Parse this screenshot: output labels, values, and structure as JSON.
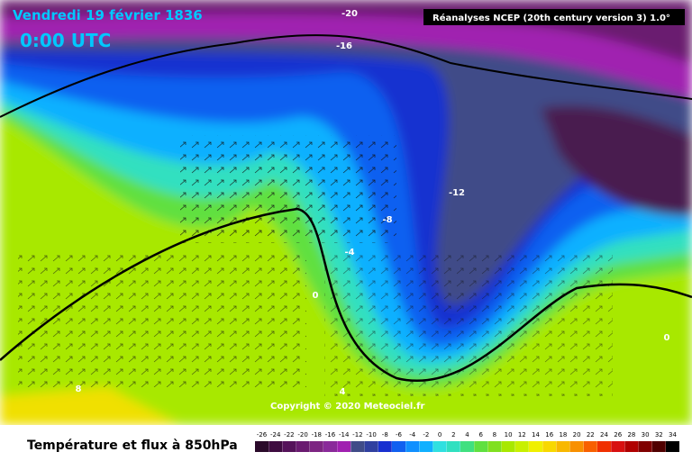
{
  "header": {
    "date": "Vendredi 19 février 1836",
    "time": "0:00 UTC",
    "source": "Réanalyses NCEP (20th century version 3) 1.0°"
  },
  "contour_labels": [
    "-20",
    "-16",
    "-12",
    "-8",
    "-4",
    "0",
    "4",
    "8",
    "0"
  ],
  "copyright": "Copyright © 2020 Meteociel.fr",
  "footer": {
    "title": "Température et flux à 850hPa"
  },
  "colorbar": {
    "labels": [
      "-26",
      "-24",
      "-22",
      "-20",
      "-18",
      "-16",
      "-14",
      "-12",
      "-10",
      "-8",
      "-6",
      "-4",
      "-2",
      "0",
      "2",
      "4",
      "6",
      "8",
      "10",
      "12",
      "14",
      "16",
      "18",
      "20",
      "22",
      "24",
      "26",
      "28",
      "30",
      "32",
      "34"
    ]
  }
}
